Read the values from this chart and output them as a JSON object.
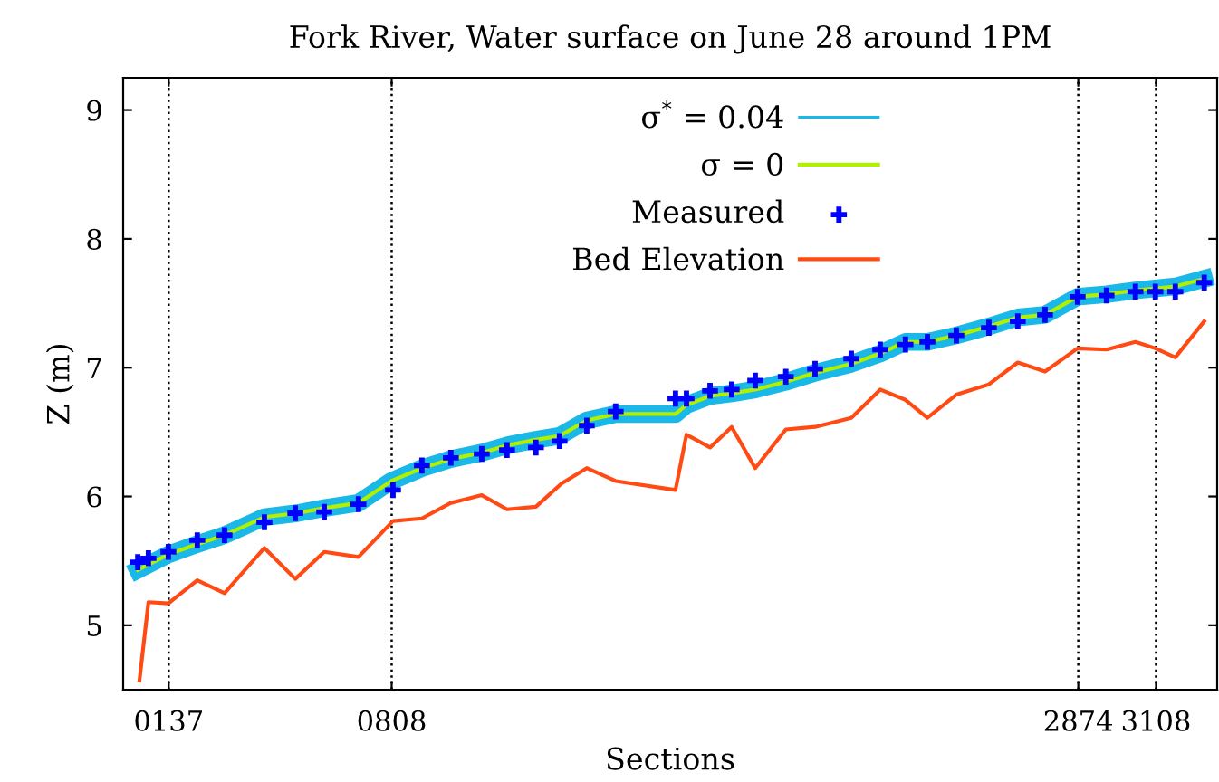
{
  "chart_data": {
    "type": "line",
    "title": "Fork River, Water surface on June 28 around 1PM",
    "xlabel": "Sections",
    "ylabel": "Z (m)",
    "xlim": [
      0,
      3292
    ],
    "ylim": [
      4.5,
      9.25
    ],
    "xticks": [
      {
        "value": 137,
        "label": "0137"
      },
      {
        "value": 808,
        "label": "0808"
      },
      2874,
      3108
    ],
    "yticks": [
      5,
      6,
      7,
      8,
      9
    ],
    "ref_lines": [
      {
        "axis": "x",
        "value": 137,
        "label": null,
        "line_style": "dotted",
        "color": "#000000"
      },
      {
        "axis": "x",
        "value": 808,
        "label": null,
        "line_style": "dotted",
        "color": "#000000"
      },
      {
        "axis": "x",
        "value": 2874,
        "label": null,
        "line_style": "dotted",
        "color": "#000000"
      },
      {
        "axis": "x",
        "value": 3108,
        "label": null,
        "line_style": "dotted",
        "color": "#000000"
      }
    ],
    "grid": false,
    "legend": "top",
    "series": [
      {
        "name": "σ$^{*}$ = 0.04",
        "color": "#1ab8e8",
        "marker": "none",
        "line_style": "solid",
        "x": [
          44,
          136,
          223,
          305,
          425,
          523,
          605,
          708,
          807,
          899,
          986,
          1079,
          1161,
          1242,
          1313,
          1395,
          1482,
          1662,
          1695,
          1766,
          1831,
          1902,
          1994,
          2082,
          2191,
          2278,
          2354,
          2420,
          2507,
          2605,
          2692,
          2774,
          2872,
          2959,
          3046,
          3166,
          3253
        ],
        "values": [
          5.43,
          5.55,
          5.63,
          5.7,
          5.84,
          5.87,
          5.91,
          5.95,
          6.12,
          6.22,
          6.29,
          6.34,
          6.4,
          6.44,
          6.47,
          6.59,
          6.64,
          6.64,
          6.71,
          6.78,
          6.8,
          6.83,
          6.89,
          6.96,
          7.03,
          7.11,
          7.2,
          7.2,
          7.25,
          7.32,
          7.39,
          7.41,
          7.55,
          7.57,
          7.6,
          7.63,
          7.69
        ]
      },
      {
        "name": "σ = 0",
        "color": "#b0f000",
        "marker": "none",
        "line_style": "solid",
        "x": [
          44,
          136,
          223,
          305,
          425,
          523,
          605,
          708,
          807,
          899,
          986,
          1079,
          1161,
          1242,
          1313,
          1395,
          1482,
          1662,
          1695,
          1766,
          1831,
          1902,
          1994,
          2082,
          2191,
          2278,
          2354,
          2420,
          2507,
          2605,
          2692,
          2774,
          2872,
          2959,
          3046,
          3166,
          3253
        ],
        "values": [
          5.43,
          5.55,
          5.63,
          5.7,
          5.84,
          5.87,
          5.91,
          5.95,
          6.12,
          6.22,
          6.29,
          6.34,
          6.4,
          6.44,
          6.47,
          6.59,
          6.64,
          6.64,
          6.71,
          6.78,
          6.8,
          6.83,
          6.89,
          6.96,
          7.03,
          7.11,
          7.2,
          7.2,
          7.25,
          7.32,
          7.39,
          7.41,
          7.55,
          7.57,
          7.6,
          7.63,
          7.69
        ]
      },
      {
        "name": "Measured",
        "type": "scatter",
        "color": "#0000ff",
        "marker": "cross",
        "x": [
          44,
          76,
          136,
          223,
          305,
          425,
          518,
          605,
          708,
          812,
          899,
          986,
          1079,
          1155,
          1242,
          1313,
          1395,
          1482,
          1662,
          1695,
          1766,
          1831,
          1902,
          1994,
          2082,
          2191,
          2278,
          2354,
          2420,
          2507,
          2605,
          2692,
          2774,
          2872,
          2959,
          3046,
          3106,
          3166,
          3253
        ],
        "values": [
          5.49,
          5.52,
          5.57,
          5.66,
          5.7,
          5.8,
          5.87,
          5.88,
          5.94,
          6.05,
          6.24,
          6.3,
          6.33,
          6.36,
          6.38,
          6.43,
          6.55,
          6.66,
          6.76,
          6.76,
          6.82,
          6.83,
          6.9,
          6.93,
          6.99,
          7.07,
          7.14,
          7.18,
          7.2,
          7.25,
          7.31,
          7.36,
          7.41,
          7.55,
          7.56,
          7.59,
          7.59,
          7.59,
          7.66
        ]
      },
      {
        "name": "Bed Elevation",
        "color": "#ff4a14",
        "marker": "none",
        "line_style": "solid",
        "x": [
          49,
          76,
          136,
          223,
          305,
          425,
          518,
          605,
          708,
          812,
          899,
          986,
          1079,
          1155,
          1242,
          1319,
          1395,
          1482,
          1662,
          1695,
          1766,
          1831,
          1902,
          1994,
          2082,
          2191,
          2278,
          2354,
          2420,
          2507,
          2605,
          2692,
          2774,
          2872,
          2959,
          3046,
          3106,
          3166,
          3253
        ],
        "values": [
          4.57,
          5.18,
          5.17,
          5.35,
          5.25,
          5.6,
          5.36,
          5.57,
          5.53,
          5.81,
          5.83,
          5.95,
          6.01,
          5.9,
          5.92,
          6.1,
          6.22,
          6.12,
          6.05,
          6.48,
          6.38,
          6.54,
          6.22,
          6.52,
          6.54,
          6.61,
          6.83,
          6.75,
          6.61,
          6.79,
          6.87,
          7.04,
          6.97,
          7.15,
          7.14,
          7.2,
          7.15,
          7.08,
          7.36
        ]
      }
    ]
  }
}
